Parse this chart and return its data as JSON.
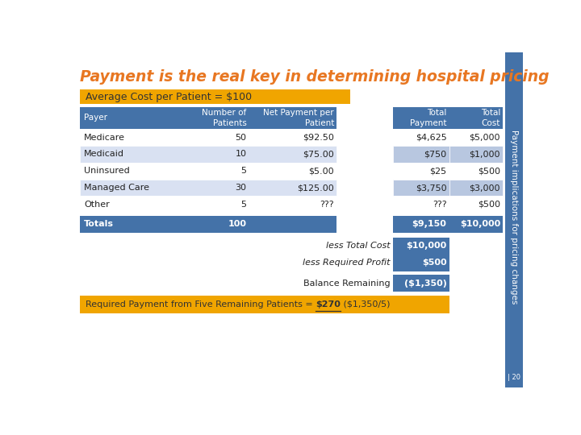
{
  "title": "Payment is the real key in determining hospital pricing",
  "title_color": "#E87722",
  "side_text": "Payment implications for pricing changes",
  "side_bg": "#4472A8",
  "avg_cost_label": "Average Cost per Patient = $100",
  "avg_cost_bg": "#F0A500",
  "avg_cost_text_color": "#333333",
  "table_header_bg": "#4472A8",
  "table_header_text": "#FFFFFF",
  "table_alt_row_bg": "#D9E1F2",
  "table_white_bg": "#FFFFFF",
  "table_border_color": "#FFFFFF",
  "totals_row_bg": "#4472A8",
  "totals_row_text": "#FFFFFF",
  "value_cell_bg": "#4472A8",
  "value_cell_text": "#FFFFFF",
  "highlight_cell_bg": "#B8C7E0",
  "bottom_bar_bg": "#F0A500",
  "bottom_bar_text": "#333333",
  "bg_color": "#FFFFFF",
  "col1_header": "Payer",
  "col2_header": "Number of\nPatients",
  "col3_header": "Net Payment per\nPatient",
  "col4_header": "Total\nPayment",
  "col5_header": "Total\nCost",
  "rows": [
    [
      "Medicare",
      "50",
      "$92.50",
      "$4,625",
      "$5,000"
    ],
    [
      "Medicaid",
      "10",
      "$75.00",
      "$750",
      "$1,000"
    ],
    [
      "Uninsured",
      "5",
      "$5.00",
      "$25",
      "$500"
    ],
    [
      "Managed Care",
      "30",
      "$125.00",
      "$3,750",
      "$3,000"
    ],
    [
      "Other",
      "5",
      "???",
      "???",
      "$500"
    ]
  ],
  "totals_row": [
    "Totals",
    "100",
    "",
    "$9,150",
    "$10,000"
  ],
  "less_total_cost_label": "less Total Cost",
  "less_required_profit_label": "less Required Profit",
  "balance_remaining_label": "Balance Remaining",
  "less_total_cost": "$10,000",
  "less_required_profit": "$500",
  "balance_remaining": "($1,350)",
  "bottom_label_pre": "Required Payment from Five Remaining Patients = ",
  "bottom_label_bold": "$270",
  "bottom_label_post": " ($1,350/5)",
  "page_num": "20"
}
